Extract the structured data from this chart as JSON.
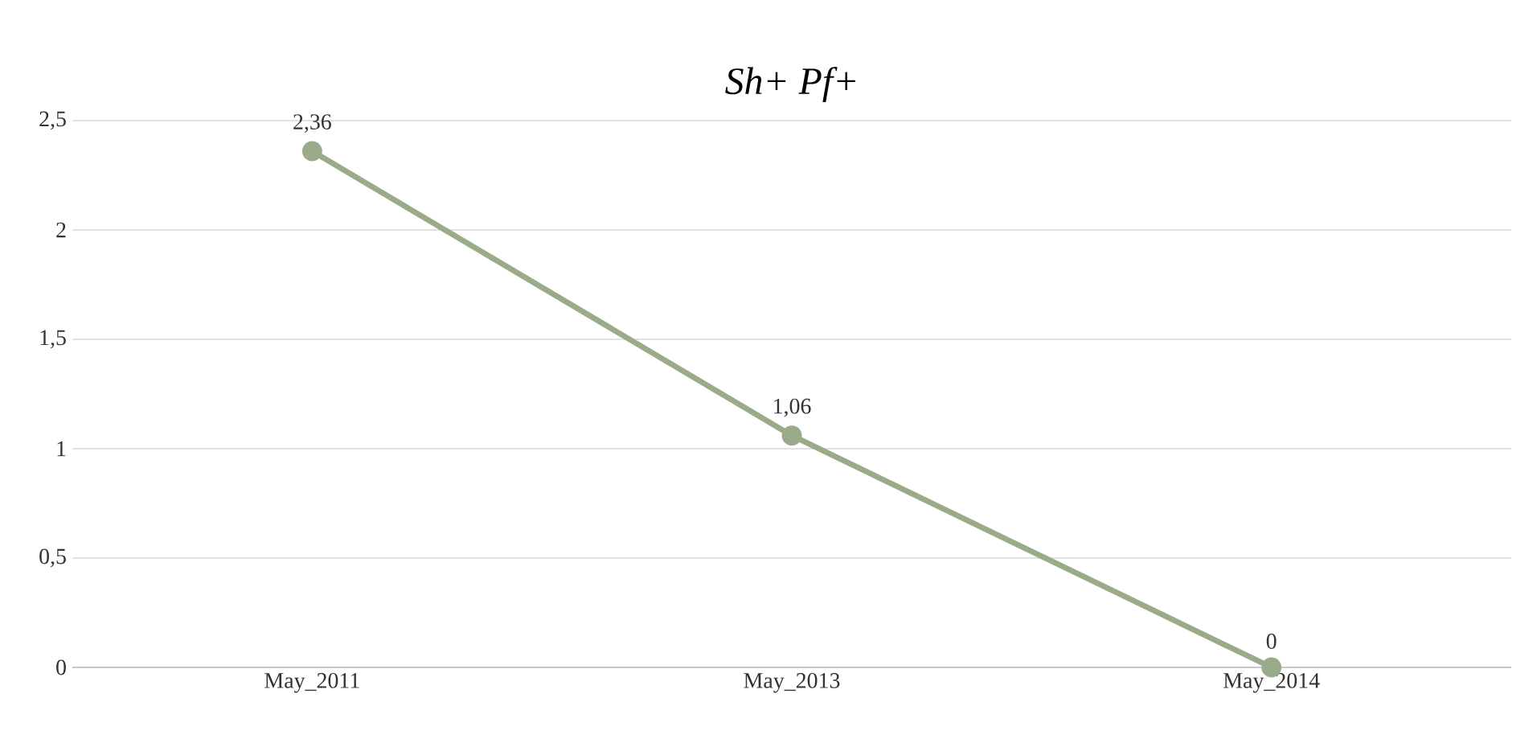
{
  "chart_data": {
    "type": "line",
    "title": "*Sh+ Pf+*",
    "categories": [
      "May_2011",
      "May_2013",
      "May_2014"
    ],
    "series": [
      {
        "color": "#9aab89",
        "values": [
          2.36,
          1.06,
          0
        ],
        "value_labels": [
          "2,36",
          "1,06",
          "0"
        ]
      }
    ],
    "ylim": [
      0,
      2.5
    ],
    "yticks": [
      {
        "value": 0,
        "label": "0"
      },
      {
        "value": 0.5,
        "label": "0,5"
      },
      {
        "value": 1,
        "label": "1"
      },
      {
        "value": 1.5,
        "label": "1,5"
      },
      {
        "value": 2,
        "label": "2"
      },
      {
        "value": 2.5,
        "label": "2,5"
      }
    ],
    "grid": "y",
    "marker": "circle",
    "line_style": "solid"
  }
}
